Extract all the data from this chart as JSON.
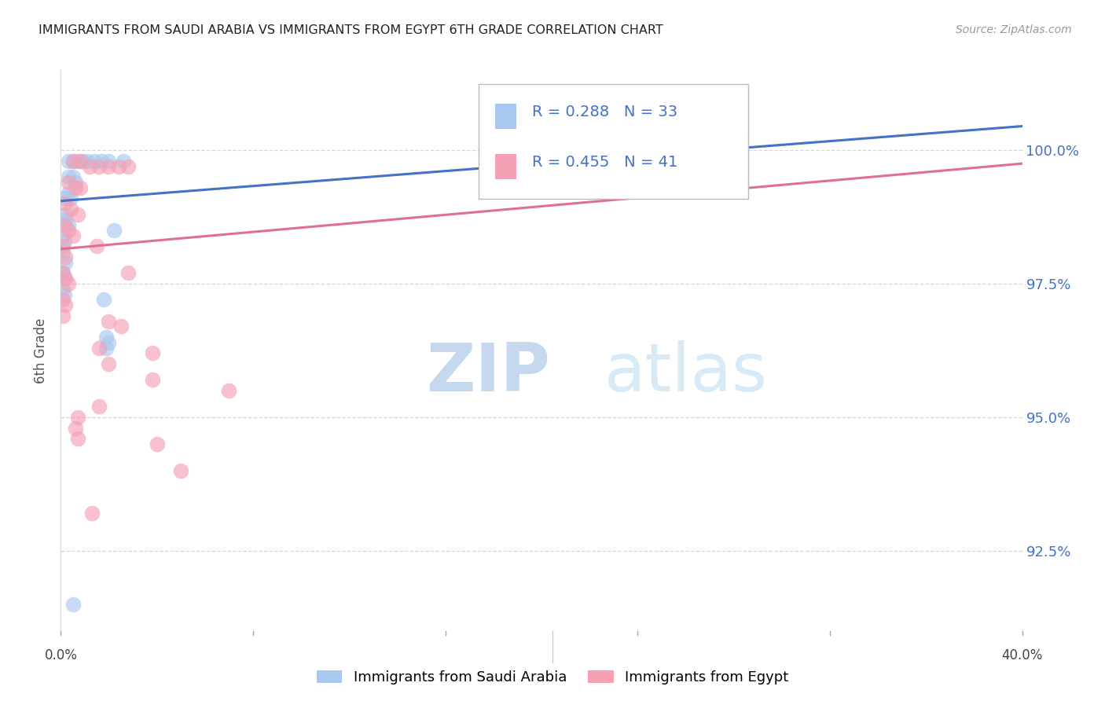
{
  "title": "IMMIGRANTS FROM SAUDI ARABIA VS IMMIGRANTS FROM EGYPT 6TH GRADE CORRELATION CHART",
  "source": "Source: ZipAtlas.com",
  "ylabel": "6th Grade",
  "ytick_labels": [
    "92.5%",
    "95.0%",
    "97.5%",
    "100.0%"
  ],
  "ytick_values": [
    92.5,
    95.0,
    97.5,
    100.0
  ],
  "ymin": 91.0,
  "ymax": 101.5,
  "xmin": 0.0,
  "xmax": 40.0,
  "legend_label_1": "Immigrants from Saudi Arabia",
  "legend_label_2": "Immigrants from Egypt",
  "R1": 0.288,
  "N1": 33,
  "R2": 0.455,
  "N2": 41,
  "color_blue": "#A8C8F0",
  "color_pink": "#F4A0B5",
  "color_blue_line": "#4472C4",
  "color_pink_line": "#E07090",
  "color_blue_text": "#4472C4",
  "background_color": "#FFFFFF",
  "grid_color": "#CCCCCC",
  "scatter_blue": [
    [
      0.3,
      99.8
    ],
    [
      0.5,
      99.8
    ],
    [
      0.7,
      99.8
    ],
    [
      0.9,
      99.8
    ],
    [
      1.1,
      99.8
    ],
    [
      1.4,
      99.8
    ],
    [
      1.7,
      99.8
    ],
    [
      2.0,
      99.8
    ],
    [
      2.6,
      99.8
    ],
    [
      0.3,
      99.5
    ],
    [
      0.5,
      99.5
    ],
    [
      0.6,
      99.4
    ],
    [
      0.2,
      99.1
    ],
    [
      0.3,
      99.2
    ],
    [
      0.4,
      99.1
    ],
    [
      0.15,
      98.8
    ],
    [
      0.2,
      98.7
    ],
    [
      0.3,
      98.6
    ],
    [
      0.1,
      98.4
    ],
    [
      0.15,
      98.3
    ],
    [
      0.1,
      98.1
    ],
    [
      0.2,
      97.9
    ],
    [
      0.1,
      97.7
    ],
    [
      0.15,
      97.6
    ],
    [
      0.1,
      97.4
    ],
    [
      0.15,
      97.3
    ],
    [
      2.2,
      98.5
    ],
    [
      1.8,
      97.2
    ],
    [
      1.9,
      96.5
    ],
    [
      2.0,
      96.4
    ],
    [
      1.9,
      96.3
    ],
    [
      25.0,
      99.8
    ],
    [
      0.5,
      91.5
    ]
  ],
  "scatter_pink": [
    [
      0.5,
      99.8
    ],
    [
      0.8,
      99.8
    ],
    [
      1.2,
      99.7
    ],
    [
      1.6,
      99.7
    ],
    [
      2.0,
      99.7
    ],
    [
      2.4,
      99.7
    ],
    [
      2.8,
      99.7
    ],
    [
      0.3,
      99.4
    ],
    [
      0.6,
      99.3
    ],
    [
      0.8,
      99.3
    ],
    [
      0.2,
      99.0
    ],
    [
      0.4,
      98.9
    ],
    [
      0.7,
      98.8
    ],
    [
      0.15,
      98.6
    ],
    [
      0.3,
      98.5
    ],
    [
      0.5,
      98.4
    ],
    [
      0.1,
      98.2
    ],
    [
      0.2,
      98.0
    ],
    [
      0.1,
      97.7
    ],
    [
      0.2,
      97.6
    ],
    [
      0.3,
      97.5
    ],
    [
      0.1,
      97.2
    ],
    [
      0.2,
      97.1
    ],
    [
      0.1,
      96.9
    ],
    [
      1.5,
      98.2
    ],
    [
      2.8,
      97.7
    ],
    [
      2.0,
      96.8
    ],
    [
      2.5,
      96.7
    ],
    [
      1.6,
      96.3
    ],
    [
      3.8,
      96.2
    ],
    [
      3.8,
      95.7
    ],
    [
      1.6,
      95.2
    ],
    [
      7.0,
      95.5
    ],
    [
      0.7,
      95.0
    ],
    [
      5.0,
      94.0
    ],
    [
      2.0,
      96.0
    ],
    [
      23.0,
      99.8
    ],
    [
      4.0,
      94.5
    ],
    [
      1.3,
      93.2
    ],
    [
      0.6,
      94.8
    ],
    [
      0.7,
      94.6
    ]
  ]
}
